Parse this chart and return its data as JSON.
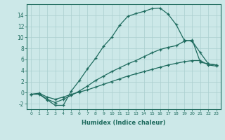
{
  "xlabel": "Humidex (Indice chaleur)",
  "ylabel": "",
  "xlim": [
    -0.5,
    23.5
  ],
  "ylim": [
    -3.0,
    16.0
  ],
  "xticks": [
    0,
    1,
    2,
    3,
    4,
    5,
    6,
    7,
    8,
    9,
    10,
    11,
    12,
    13,
    14,
    15,
    16,
    17,
    18,
    19,
    20,
    21,
    22,
    23
  ],
  "yticks": [
    -2,
    0,
    2,
    4,
    6,
    8,
    10,
    12,
    14
  ],
  "bg_color": "#cce8e8",
  "grid_color": "#aacfcf",
  "line_color": "#1e6b5e",
  "line1_x": [
    0,
    1,
    2,
    3,
    4,
    5,
    6,
    7,
    8,
    9,
    10,
    11,
    12,
    13,
    14,
    15,
    16,
    17,
    18,
    19,
    20,
    21,
    22,
    23
  ],
  "line1_y": [
    -0.3,
    -0.3,
    -1.3,
    -2.3,
    -2.3,
    0.3,
    2.2,
    4.3,
    6.2,
    8.4,
    10.0,
    12.2,
    13.8,
    14.3,
    14.7,
    15.2,
    15.3,
    14.2,
    12.3,
    9.5,
    9.3,
    7.2,
    5.2,
    5.0
  ],
  "line2_x": [
    0,
    1,
    2,
    3,
    4,
    5,
    6,
    7,
    8,
    9,
    10,
    11,
    12,
    13,
    14,
    15,
    16,
    17,
    18,
    19,
    20,
    21,
    22,
    23
  ],
  "line2_y": [
    -0.3,
    -0.2,
    -1.2,
    -1.8,
    -1.2,
    -0.5,
    0.3,
    1.2,
    2.2,
    3.0,
    3.8,
    4.5,
    5.2,
    5.8,
    6.5,
    7.2,
    7.8,
    8.2,
    8.5,
    9.3,
    9.5,
    5.5,
    5.2,
    5.0
  ],
  "line3_x": [
    0,
    1,
    2,
    3,
    4,
    5,
    6,
    7,
    8,
    9,
    10,
    11,
    12,
    13,
    14,
    15,
    16,
    17,
    18,
    19,
    20,
    21,
    22,
    23
  ],
  "line3_y": [
    -0.3,
    -0.1,
    -0.8,
    -1.2,
    -0.8,
    -0.3,
    0.1,
    0.5,
    1.0,
    1.5,
    2.0,
    2.5,
    3.0,
    3.4,
    3.8,
    4.2,
    4.6,
    5.0,
    5.3,
    5.6,
    5.8,
    5.8,
    5.0,
    4.8
  ]
}
